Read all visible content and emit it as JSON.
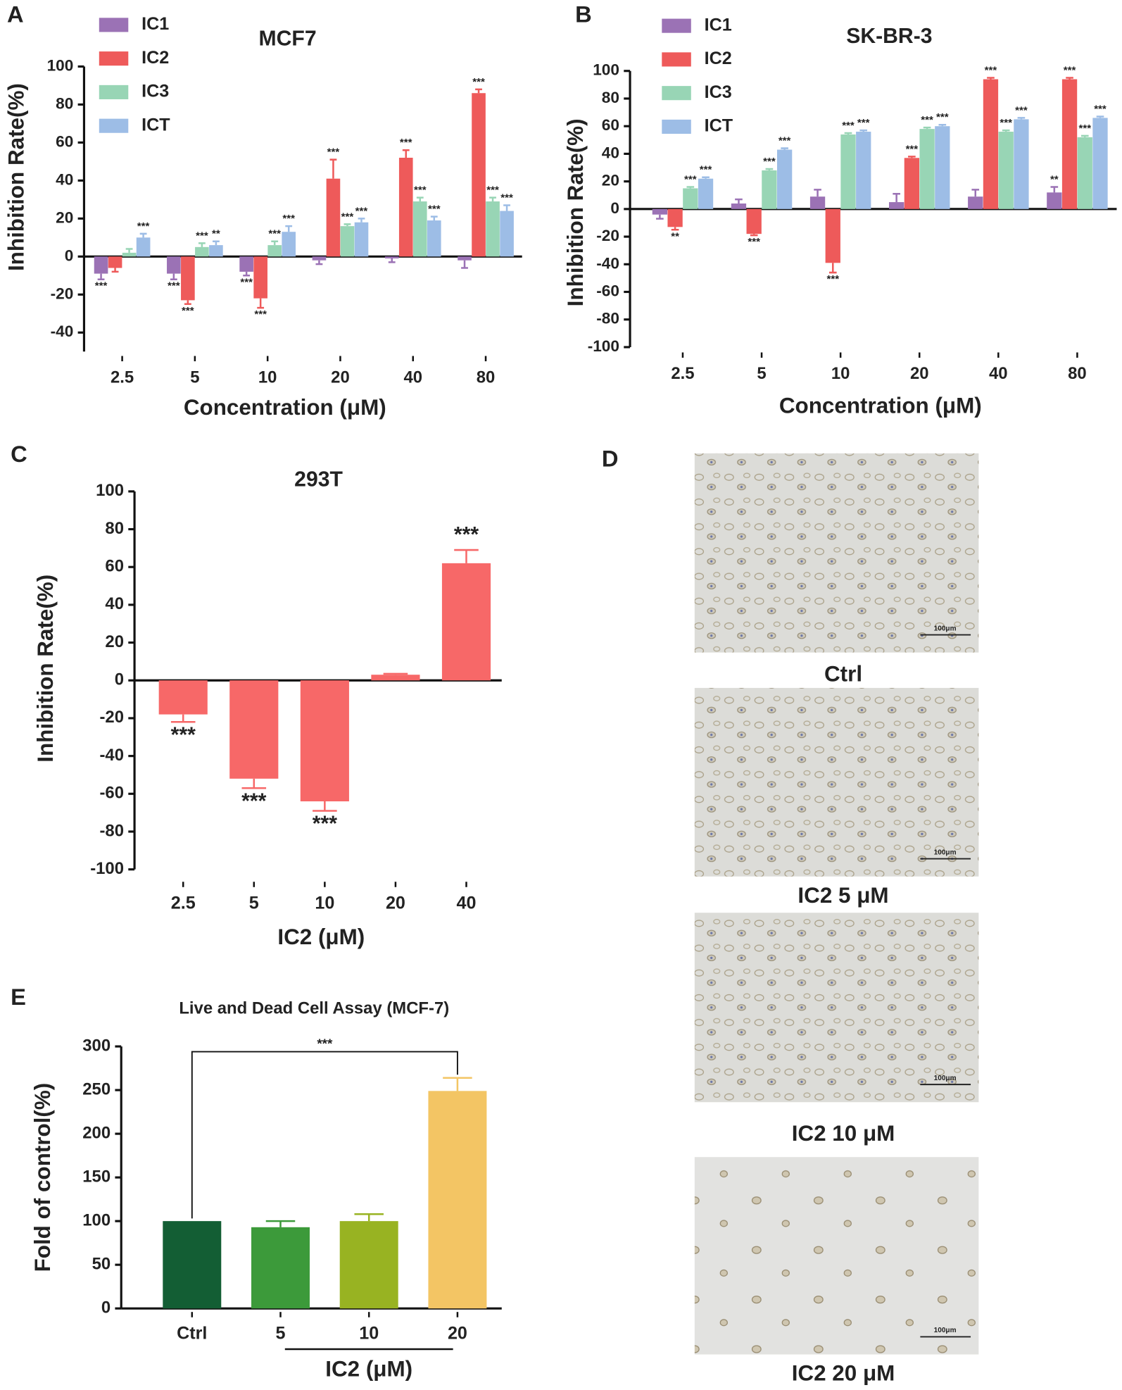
{
  "chart_data": [
    {
      "type": "grouped-bar",
      "panel": "A",
      "title": "MCF7",
      "x_label": "Concentration (μM)",
      "y_label": "Inhibition Rate(%)",
      "categories": [
        "2.5",
        "5",
        "10",
        "20",
        "40",
        "80"
      ],
      "ylim": [
        -50,
        100
      ],
      "yticks": [
        -40,
        -20,
        0,
        20,
        40,
        60,
        80,
        100
      ],
      "series": [
        {
          "name": "IC1",
          "color": "#9b72b5",
          "values": [
            -9,
            -9,
            -8,
            -2,
            -1,
            -2
          ],
          "errors": [
            3,
            3,
            2,
            2,
            2,
            4
          ],
          "sig": [
            "***",
            "***",
            "***",
            null,
            null,
            null
          ]
        },
        {
          "name": "IC2",
          "color": "#ee5a5a",
          "values": [
            -6,
            -23,
            -22,
            41,
            52,
            86
          ],
          "errors": [
            2,
            2,
            5,
            10,
            4,
            2
          ],
          "sig": [
            null,
            "***",
            "***",
            "***",
            "***",
            "***"
          ]
        },
        {
          "name": "IC3",
          "color": "#98d5b5",
          "values": [
            2,
            5,
            6,
            16,
            29,
            29
          ],
          "errors": [
            2,
            2,
            2,
            1,
            2,
            2
          ],
          "sig": [
            null,
            "***",
            "***",
            "***",
            "***",
            "***"
          ]
        },
        {
          "name": "ICT",
          "color": "#9dbde6",
          "values": [
            10,
            6,
            13,
            18,
            19,
            24
          ],
          "errors": [
            2,
            2,
            3,
            2,
            2,
            3
          ],
          "sig": [
            "***",
            "**",
            "***",
            "***",
            "***",
            "***"
          ]
        }
      ]
    },
    {
      "type": "grouped-bar",
      "panel": "B",
      "title": "SK-BR-3",
      "x_label": "Concentration (μM)",
      "y_label": "Inhibition Rate(%)",
      "categories": [
        "2.5",
        "5",
        "10",
        "20",
        "40",
        "80"
      ],
      "ylim": [
        -100,
        100
      ],
      "yticks": [
        -100,
        -80,
        -60,
        -40,
        -20,
        0,
        20,
        40,
        60,
        80,
        100
      ],
      "series": [
        {
          "name": "IC1",
          "color": "#9b72b5",
          "values": [
            -4,
            4,
            9,
            5,
            9,
            12
          ],
          "errors": [
            3,
            3,
            5,
            6,
            5,
            4
          ],
          "sig": [
            null,
            null,
            null,
            null,
            null,
            "**"
          ]
        },
        {
          "name": "IC2",
          "color": "#ee5a5a",
          "values": [
            -13,
            -18,
            -39,
            37,
            94,
            94
          ],
          "errors": [
            2,
            1,
            7,
            1,
            1,
            1
          ],
          "sig": [
            "**",
            "***",
            "***",
            "***",
            "***",
            "***"
          ]
        },
        {
          "name": "IC3",
          "color": "#98d5b5",
          "values": [
            15,
            28,
            54,
            58,
            56,
            52
          ],
          "errors": [
            1,
            1,
            1,
            1,
            1,
            1
          ],
          "sig": [
            "***",
            "***",
            "***",
            "***",
            "***",
            "***"
          ]
        },
        {
          "name": "ICT",
          "color": "#9dbde6",
          "values": [
            22,
            43,
            56,
            60,
            65,
            66
          ],
          "errors": [
            1,
            1,
            1,
            1,
            1,
            1
          ],
          "sig": [
            "***",
            "***",
            "***",
            "***",
            "***",
            "***"
          ]
        }
      ]
    },
    {
      "type": "bar",
      "panel": "C",
      "title": "293T",
      "x_label": "IC2 (μM)",
      "y_label": "Inhibition Rate(%)",
      "categories": [
        "2.5",
        "5",
        "10",
        "20",
        "40"
      ],
      "ylim": [
        -100,
        100
      ],
      "yticks": [
        -100,
        -80,
        -60,
        -40,
        -20,
        0,
        20,
        40,
        60,
        80,
        100
      ],
      "color": "#f76868",
      "values": [
        -18,
        -52,
        -64,
        3,
        62
      ],
      "errors": [
        4,
        5,
        5,
        0.5,
        7
      ],
      "sig": [
        "***",
        "***",
        "***",
        null,
        "***"
      ]
    },
    {
      "type": "bar",
      "panel": "E",
      "title": "Live and Dead Cell Assay (MCF-7)",
      "y_label": "Fold of control(%)",
      "categories": [
        "Ctrl",
        "5",
        "10",
        "20"
      ],
      "x_group_label": "IC2 (μM)",
      "ylim": [
        0,
        300
      ],
      "yticks": [
        0,
        50,
        100,
        150,
        200,
        250,
        300
      ],
      "colors": [
        "#135e34",
        "#3c9a3a",
        "#98b322",
        "#f3c564"
      ],
      "values": [
        100,
        93,
        100,
        249
      ],
      "errors": [
        0,
        7,
        8,
        15
      ],
      "annotation": "***"
    }
  ],
  "images": {
    "panel": "D",
    "scale_bar": "100μm",
    "captions": [
      "Ctrl",
      "IC2 5 μM",
      "IC2 10 μM",
      "IC2 20 μM"
    ]
  }
}
